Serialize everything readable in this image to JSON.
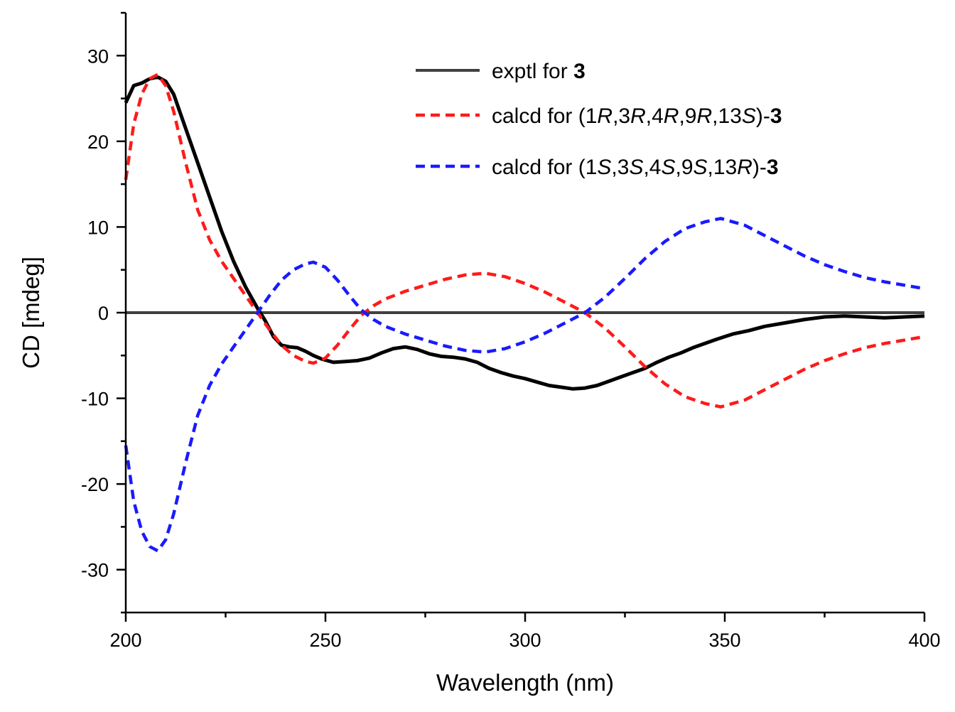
{
  "chart_data": {
    "type": "line",
    "title": "",
    "xlabel": "Wavelength (nm)",
    "ylabel": "CD [mdeg]",
    "xlim": [
      200,
      400
    ],
    "ylim": [
      -35,
      35
    ],
    "x_ticks": [
      200,
      250,
      300,
      350,
      400
    ],
    "x_tick_labels": [
      "200",
      "250",
      "300",
      "350",
      "400"
    ],
    "y_ticks": [
      -30,
      -20,
      -10,
      0,
      10,
      20,
      30
    ],
    "y_tick_labels": [
      "-30",
      "-20",
      "-10",
      "0",
      "10",
      "20",
      "30"
    ],
    "grid": false,
    "legend_position": "top-right",
    "zero_line": true,
    "series": [
      {
        "id": "exptl",
        "legend_parts": [
          {
            "text": "exptl for ",
            "style": "normal"
          },
          {
            "text": "3",
            "style": "bold"
          }
        ],
        "color": "#000000",
        "dash": "solid",
        "x": [
          200,
          202,
          204,
          206,
          208,
          210,
          212,
          215,
          218,
          221,
          224,
          227,
          230,
          233,
          235,
          237,
          239,
          241,
          243,
          245,
          247,
          249,
          252,
          255,
          258,
          261,
          264,
          267,
          270,
          273,
          276,
          279,
          282,
          285,
          288,
          291,
          294,
          297,
          300,
          303,
          306,
          309,
          312,
          315,
          318,
          321,
          324,
          327,
          330,
          333,
          336,
          339,
          342,
          345,
          348,
          352,
          356,
          360,
          365,
          370,
          375,
          380,
          385,
          390,
          395,
          400
        ],
        "y": [
          24.5,
          26.5,
          26.8,
          27.3,
          27.5,
          27.0,
          25.5,
          21.5,
          17.5,
          13.5,
          9.5,
          6.0,
          3.0,
          0.5,
          -1.0,
          -2.8,
          -3.8,
          -4.0,
          -4.1,
          -4.5,
          -5.0,
          -5.4,
          -5.8,
          -5.7,
          -5.6,
          -5.3,
          -4.7,
          -4.2,
          -4.0,
          -4.3,
          -4.8,
          -5.1,
          -5.2,
          -5.4,
          -5.8,
          -6.5,
          -7.0,
          -7.4,
          -7.7,
          -8.1,
          -8.5,
          -8.7,
          -8.9,
          -8.8,
          -8.5,
          -8.0,
          -7.5,
          -7.0,
          -6.5,
          -5.8,
          -5.2,
          -4.7,
          -4.1,
          -3.6,
          -3.1,
          -2.5,
          -2.1,
          -1.6,
          -1.2,
          -0.8,
          -0.5,
          -0.4,
          -0.5,
          -0.6,
          -0.5,
          -0.4
        ]
      },
      {
        "id": "calcd-R",
        "legend_parts": [
          {
            "text": "calcd for (1",
            "style": "normal"
          },
          {
            "text": "R",
            "style": "italic"
          },
          {
            "text": ",3",
            "style": "normal"
          },
          {
            "text": "R",
            "style": "italic"
          },
          {
            "text": ",4",
            "style": "normal"
          },
          {
            "text": "R",
            "style": "italic"
          },
          {
            "text": ",9",
            "style": "normal"
          },
          {
            "text": "R",
            "style": "italic"
          },
          {
            "text": ",13",
            "style": "normal"
          },
          {
            "text": "S",
            "style": "italic"
          },
          {
            "text": ")-",
            "style": "normal"
          },
          {
            "text": "3",
            "style": "bold"
          }
        ],
        "color": "#ff1a1a",
        "dash": "dashed",
        "x": [
          200,
          202,
          204,
          206,
          208,
          210,
          212,
          215,
          218,
          221,
          224,
          227,
          230,
          233,
          236,
          239,
          242,
          245,
          247,
          250,
          253,
          256,
          259,
          262,
          265,
          270,
          275,
          280,
          285,
          290,
          295,
          300,
          305,
          310,
          315,
          320,
          325,
          330,
          335,
          340,
          345,
          349,
          355,
          360,
          365,
          370,
          375,
          380,
          385,
          390,
          395,
          400
        ],
        "y": [
          15.5,
          22.0,
          25.5,
          27.3,
          27.8,
          26.5,
          23.5,
          17.5,
          12.0,
          8.5,
          6.0,
          4.0,
          2.0,
          0.0,
          -2.0,
          -3.8,
          -5.0,
          -5.7,
          -5.9,
          -5.3,
          -3.8,
          -2.0,
          -0.3,
          0.8,
          1.6,
          2.5,
          3.2,
          3.9,
          4.4,
          4.6,
          4.2,
          3.4,
          2.4,
          1.2,
          0.0,
          -1.8,
          -4.0,
          -6.3,
          -8.3,
          -9.8,
          -10.6,
          -11.0,
          -10.2,
          -9.0,
          -7.8,
          -6.6,
          -5.6,
          -4.8,
          -4.1,
          -3.6,
          -3.2,
          -2.8
        ]
      },
      {
        "id": "calcd-S",
        "legend_parts": [
          {
            "text": "calcd for (1",
            "style": "normal"
          },
          {
            "text": "S",
            "style": "italic"
          },
          {
            "text": ",3",
            "style": "normal"
          },
          {
            "text": "S",
            "style": "italic"
          },
          {
            "text": ",4",
            "style": "normal"
          },
          {
            "text": "S",
            "style": "italic"
          },
          {
            "text": ",9",
            "style": "normal"
          },
          {
            "text": "S",
            "style": "italic"
          },
          {
            "text": ",13",
            "style": "normal"
          },
          {
            "text": "R",
            "style": "italic"
          },
          {
            "text": ")-",
            "style": "normal"
          },
          {
            "text": "3",
            "style": "bold"
          }
        ],
        "color": "#1a1aff",
        "dash": "dashed",
        "x": [
          200,
          202,
          204,
          206,
          208,
          210,
          212,
          215,
          218,
          221,
          224,
          227,
          230,
          233,
          236,
          239,
          242,
          245,
          247,
          250,
          253,
          256,
          259,
          262,
          265,
          270,
          275,
          280,
          285,
          290,
          295,
          300,
          305,
          310,
          315,
          320,
          325,
          330,
          335,
          340,
          345,
          349,
          355,
          360,
          365,
          370,
          375,
          380,
          385,
          390,
          395,
          400
        ],
        "y": [
          -15.5,
          -22.0,
          -25.5,
          -27.3,
          -27.8,
          -26.5,
          -23.5,
          -17.5,
          -12.0,
          -8.5,
          -6.0,
          -4.0,
          -2.0,
          0.0,
          2.0,
          3.8,
          5.0,
          5.7,
          5.9,
          5.3,
          3.8,
          2.0,
          0.3,
          -0.8,
          -1.6,
          -2.5,
          -3.2,
          -3.9,
          -4.4,
          -4.6,
          -4.2,
          -3.4,
          -2.4,
          -1.2,
          0.0,
          1.8,
          4.0,
          6.3,
          8.3,
          9.8,
          10.6,
          11.0,
          10.2,
          9.0,
          7.8,
          6.6,
          5.6,
          4.8,
          4.1,
          3.6,
          3.2,
          2.8
        ]
      }
    ]
  }
}
